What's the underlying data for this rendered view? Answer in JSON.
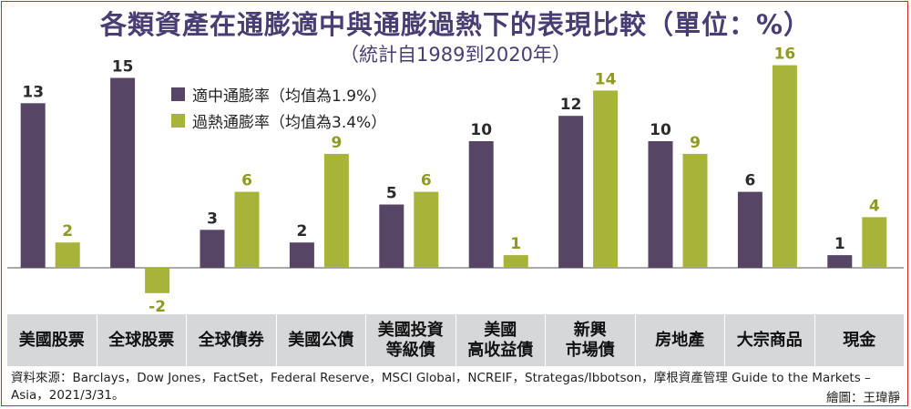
{
  "header": {
    "title": "各類資產在通膨適中與通膨過熱下的表現比較（單位：%）",
    "subtitle": "（統計自1989到2020年）"
  },
  "legend": [
    {
      "label": "適中通膨率（均值為1.9%）",
      "color": "#574566"
    },
    {
      "label": "過熱通膨率（均值為3.4%）",
      "color": "#a8b33a"
    }
  ],
  "footer": {
    "source": "資料來源：Barclays，Dow Jones，FactSet，Federal Reserve，MSCI Global，NCREIF，Strategas/Ibbotson，摩根資產管理 Guide to the Markets –Asia，2021/3/31。",
    "credit": "繪圖：王瑋靜"
  },
  "chart_data": {
    "type": "bar",
    "title": "各類資產在通膨適中與通膨過熱下的表現比較（單位：%）",
    "subtitle": "（統計自1989到2020年）",
    "categories": [
      "美國股票",
      "全球股票",
      "全球債券",
      "美國公債",
      "美國投資\n等級債",
      "美國\n高收益債",
      "新興\n市場債",
      "房地產",
      "大宗商品",
      "現金"
    ],
    "series": [
      {
        "name": "適中通膨率（均值為1.9%）",
        "color": "#574566",
        "values": [
          13,
          15,
          3,
          2,
          5,
          10,
          12,
          10,
          6,
          1
        ]
      },
      {
        "name": "過熱通膨率（均值為3.4%）",
        "color": "#a8b33a",
        "values": [
          2,
          -2,
          6,
          9,
          6,
          1,
          14,
          9,
          16,
          4
        ]
      }
    ],
    "ylim": [
      -3,
      17
    ],
    "grid": false,
    "legend_position": "top-left"
  }
}
